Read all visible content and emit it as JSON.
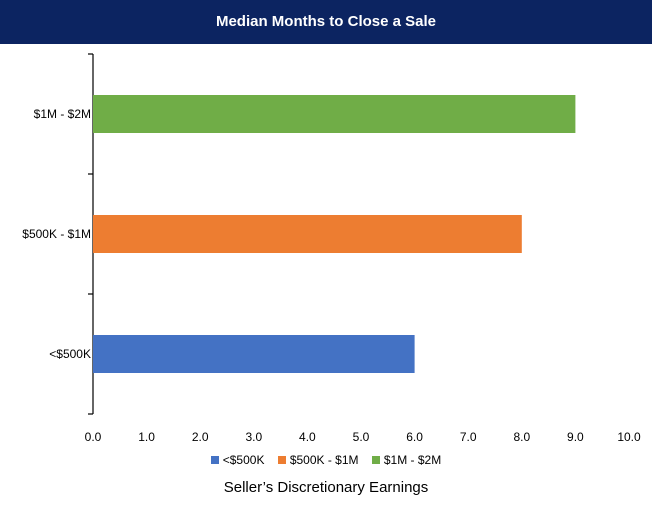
{
  "chart_data": {
    "type": "bar",
    "orientation": "horizontal",
    "title": "Median Months to Close a Sale",
    "xlabel": "Seller’s Discretionary Earnings",
    "ylabel": "",
    "categories": [
      "<$500K",
      "$500K - $1M",
      "$1M - $2M"
    ],
    "values": [
      6.0,
      8.0,
      9.0
    ],
    "colors": [
      "#4472c4",
      "#ed7d31",
      "#70ad47"
    ],
    "xlim": [
      0,
      10
    ],
    "xticks": [
      "0.0",
      "1.0",
      "2.0",
      "3.0",
      "4.0",
      "5.0",
      "6.0",
      "7.0",
      "8.0",
      "9.0",
      "10.0"
    ],
    "grid": false,
    "legend_position": "bottom",
    "legend": [
      {
        "label": "<$500K",
        "color": "#4472c4"
      },
      {
        "label": "$500K - $1M",
        "color": "#ed7d31"
      },
      {
        "label": "$1M - $2M",
        "color": "#70ad47"
      }
    ]
  }
}
